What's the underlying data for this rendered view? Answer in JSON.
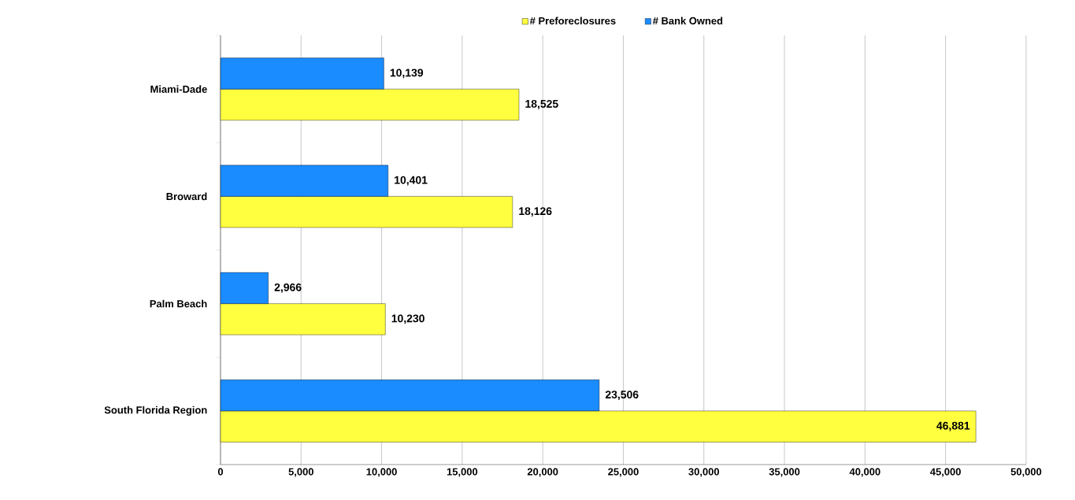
{
  "chart_data": {
    "type": "bar",
    "orientation": "horizontal",
    "categories": [
      "Miami-Dade",
      "Broward",
      "Palm Beach",
      "South Florida Region"
    ],
    "series": [
      {
        "name": "# Preforeclosures",
        "color": "#ffff40",
        "values": [
          18525,
          18126,
          10230,
          46881
        ],
        "value_labels": [
          "18,525",
          "18,126",
          "10,230",
          "46,881"
        ]
      },
      {
        "name": "# Bank Owned",
        "color": "#1a8cff",
        "values": [
          10139,
          10401,
          2966,
          23506
        ],
        "value_labels": [
          "10,139",
          "10,401",
          "2,966",
          "23,506"
        ]
      }
    ],
    "xlim": [
      0,
      50000
    ],
    "xticks": [
      0,
      {
        "value": 5000,
        "label": "5,000"
      },
      {
        "value": 10000,
        "label": "10,000"
      },
      {
        "value": 15000,
        "label": "15,000"
      },
      {
        "value": 20000,
        "label": "20,000"
      },
      {
        "value": 25000,
        "label": "25,000"
      },
      {
        "value": 30000,
        "label": "30,000"
      },
      {
        "value": 35000,
        "label": "35,000"
      },
      {
        "value": 40000,
        "label": "40,000"
      },
      {
        "value": 45000,
        "label": "45,000"
      },
      {
        "value": 50000,
        "label": "50,000"
      }
    ],
    "grid": "x",
    "legend": "top"
  }
}
